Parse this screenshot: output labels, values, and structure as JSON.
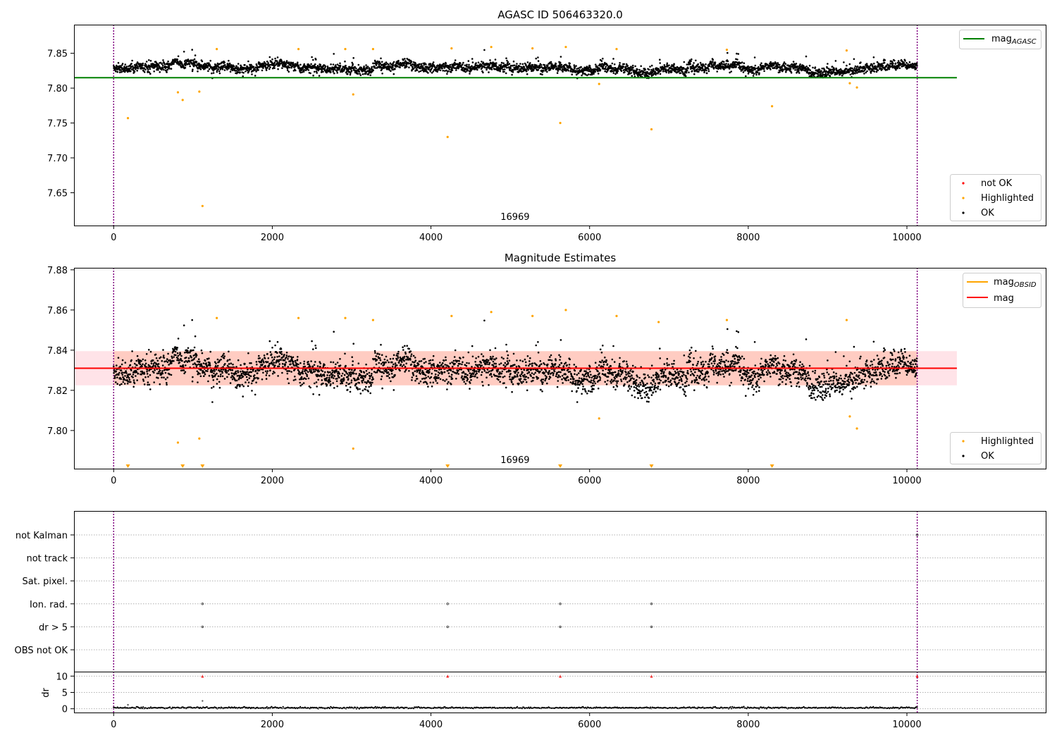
{
  "colors": {
    "ok": "#000000",
    "highlighted": "#ffa500",
    "not_ok": "#ff0000",
    "mag_agasc_line": "#008000",
    "mag_line": "#ff0000",
    "mag_obsid_line": "#ffa500",
    "obs_band": "#ffc0cb",
    "obs_band_inner": "#ffa07a",
    "boundary": "#800080"
  },
  "chart_data": [
    {
      "type": "scatter",
      "title": "AGASC ID 506463320.0",
      "xlim": [
        -500,
        11750
      ],
      "ylim": [
        7.603,
        7.891
      ],
      "xticks": [
        0,
        2000,
        4000,
        6000,
        8000,
        10000
      ],
      "xtick_labels": [
        "0",
        "2000",
        "4000",
        "6000",
        "8000",
        "10000"
      ],
      "yticks": [
        7.65,
        7.7,
        7.75,
        7.8,
        7.85
      ],
      "ytick_labels": [
        "7.65",
        "7.70",
        "7.75",
        "7.80",
        "7.85"
      ],
      "obsid_label": "16969",
      "obsid_label_x": 5060,
      "obs_boundaries": [
        0,
        10130
      ],
      "mag_agasc": 7.815,
      "mag_agasc_range": [
        0,
        10630
      ],
      "ok_series": {
        "x_start": 0,
        "x_end": 10130,
        "base": 7.829,
        "noise": 0.006,
        "spike_max": 7.856
      },
      "highlighted_points": [
        {
          "x": 180,
          "y": 7.757
        },
        {
          "x": 810,
          "y": 7.794
        },
        {
          "x": 870,
          "y": 7.783
        },
        {
          "x": 1080,
          "y": 7.795
        },
        {
          "x": 1120,
          "y": 7.631
        },
        {
          "x": 1300,
          "y": 7.856
        },
        {
          "x": 2330,
          "y": 7.856
        },
        {
          "x": 2920,
          "y": 7.856
        },
        {
          "x": 3020,
          "y": 7.791
        },
        {
          "x": 3270,
          "y": 7.856
        },
        {
          "x": 4210,
          "y": 7.73
        },
        {
          "x": 4260,
          "y": 7.857
        },
        {
          "x": 4760,
          "y": 7.859
        },
        {
          "x": 5280,
          "y": 7.857
        },
        {
          "x": 5630,
          "y": 7.75
        },
        {
          "x": 5700,
          "y": 7.859
        },
        {
          "x": 6120,
          "y": 7.806
        },
        {
          "x": 6340,
          "y": 7.856
        },
        {
          "x": 6780,
          "y": 7.741
        },
        {
          "x": 7730,
          "y": 7.855
        },
        {
          "x": 8300,
          "y": 7.774
        },
        {
          "x": 9240,
          "y": 7.854
        },
        {
          "x": 9280,
          "y": 7.807
        },
        {
          "x": 9370,
          "y": 7.801
        }
      ],
      "legend_top": [
        {
          "label": "mag",
          "sub": "AGASC"
        }
      ],
      "legend_bottom": [
        {
          "label": "not OK",
          "color": "not_ok"
        },
        {
          "label": "Highlighted",
          "color": "highlighted"
        },
        {
          "label": "OK",
          "color": "ok"
        }
      ]
    },
    {
      "type": "scatter",
      "title": "Magnitude Estimates",
      "xlim": [
        -500,
        11750
      ],
      "ylim": [
        7.781,
        7.881
      ],
      "xticks": [
        0,
        2000,
        4000,
        6000,
        8000,
        10000
      ],
      "xtick_labels": [
        "0",
        "2000",
        "4000",
        "6000",
        "8000",
        "10000"
      ],
      "yticks": [
        7.8,
        7.82,
        7.84,
        7.86,
        7.88
      ],
      "ytick_labels": [
        "7.80",
        "7.82",
        "7.84",
        "7.86",
        "7.88"
      ],
      "obsid_label": "16969",
      "obsid_label_x": 5060,
      "obs_boundaries": [
        0,
        10130
      ],
      "mag": 7.831,
      "mag_band": [
        7.8225,
        7.8395
      ],
      "mag_band_range": [
        0,
        10630
      ],
      "mag_obsid": 7.831,
      "mag_obsid_range": [
        0,
        10130
      ],
      "ok_series": {
        "x_start": 0,
        "x_end": 10130,
        "base": 7.829,
        "noise": 0.006,
        "spike_max": 7.856
      },
      "highlighted_points": [
        {
          "x": 810,
          "y": 7.794
        },
        {
          "x": 1080,
          "y": 7.796
        },
        {
          "x": 1300,
          "y": 7.856
        },
        {
          "x": 2330,
          "y": 7.856
        },
        {
          "x": 2920,
          "y": 7.856
        },
        {
          "x": 3020,
          "y": 7.791
        },
        {
          "x": 3270,
          "y": 7.855
        },
        {
          "x": 4260,
          "y": 7.857
        },
        {
          "x": 4760,
          "y": 7.859
        },
        {
          "x": 5280,
          "y": 7.857
        },
        {
          "x": 5700,
          "y": 7.86
        },
        {
          "x": 6120,
          "y": 7.806
        },
        {
          "x": 6340,
          "y": 7.857
        },
        {
          "x": 6870,
          "y": 7.854
        },
        {
          "x": 7730,
          "y": 7.855
        },
        {
          "x": 9240,
          "y": 7.855
        },
        {
          "x": 9280,
          "y": 7.807
        },
        {
          "x": 9370,
          "y": 7.801
        }
      ],
      "below_range_markers": [
        180,
        870,
        1120,
        4210,
        5630,
        6780,
        8300
      ],
      "legend_top": [
        {
          "label": "mag",
          "sub": "OBSID",
          "color": "mag_obsid_line"
        },
        {
          "label": "mag",
          "sub": "",
          "color": "mag_line"
        }
      ],
      "legend_bottom": [
        {
          "label": "Highlighted",
          "color": "highlighted"
        },
        {
          "label": "OK",
          "color": "ok"
        }
      ]
    },
    {
      "type": "scatter",
      "title": "",
      "xlim": [
        -500,
        11750
      ],
      "xticks": [
        0,
        2000,
        4000,
        6000,
        8000,
        10000
      ],
      "xtick_labels": [
        "0",
        "2000",
        "4000",
        "6000",
        "8000",
        "10000"
      ],
      "obs_boundaries": [
        0,
        10130
      ],
      "flag_rows": [
        "not Kalman",
        "not track",
        "Sat. pixel.",
        "Ion. rad.",
        "dr > 5",
        "OBS not OK"
      ],
      "flag_points": [
        {
          "row": "not Kalman",
          "x": 10130
        },
        {
          "row": "Ion. rad.",
          "x": 1120
        },
        {
          "row": "Ion. rad.",
          "x": 4210
        },
        {
          "row": "Ion. rad.",
          "x": 5630
        },
        {
          "row": "Ion. rad.",
          "x": 6780
        },
        {
          "row": "dr > 5",
          "x": 1120
        },
        {
          "row": "dr > 5",
          "x": 4210
        },
        {
          "row": "dr > 5",
          "x": 5630
        },
        {
          "row": "dr > 5",
          "x": 6780
        }
      ],
      "dr": {
        "ylabel": "dr",
        "ylim": [
          -0.5,
          10.5
        ],
        "yticks": [
          0,
          5,
          10
        ],
        "ytick_labels": [
          "0",
          "5",
          "10"
        ],
        "typical": 0.3,
        "capped_points": [
          {
            "x": 1120,
            "y": 10
          },
          {
            "x": 4210,
            "y": 10
          },
          {
            "x": 5630,
            "y": 10
          },
          {
            "x": 6780,
            "y": 10
          },
          {
            "x": 10130,
            "y": 10
          }
        ],
        "other_points": [
          {
            "x": 1120,
            "y": 2.4
          },
          {
            "x": 180,
            "y": 1.2
          }
        ]
      }
    }
  ]
}
